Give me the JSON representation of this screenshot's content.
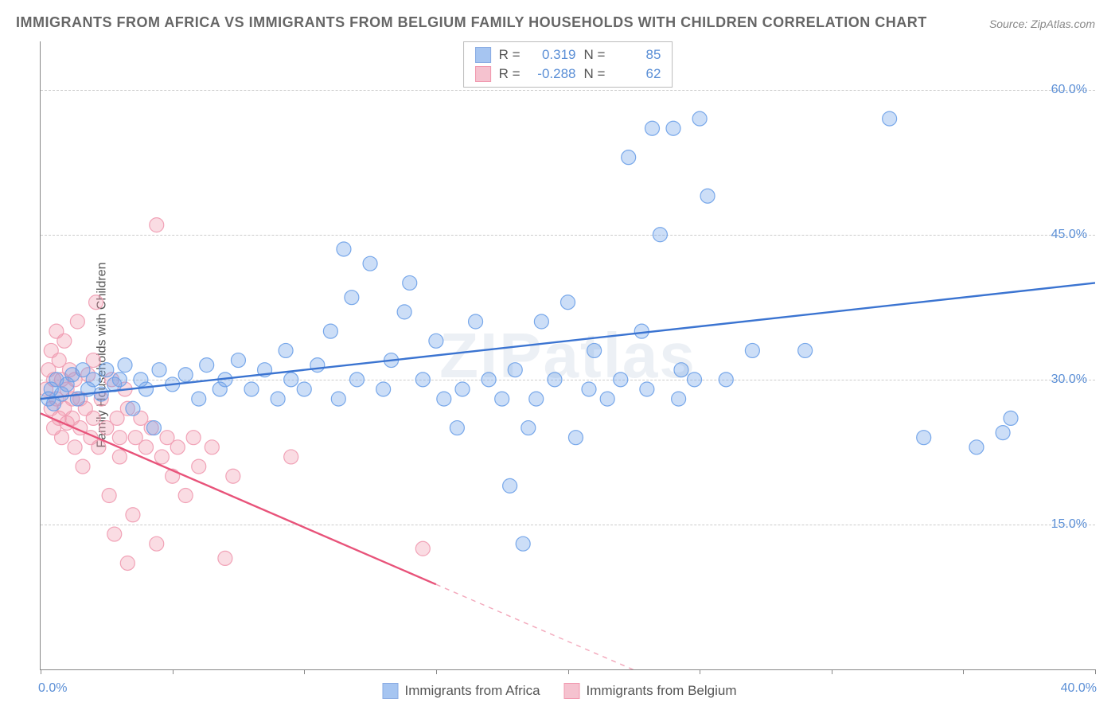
{
  "title": "IMMIGRANTS FROM AFRICA VS IMMIGRANTS FROM BELGIUM FAMILY HOUSEHOLDS WITH CHILDREN CORRELATION CHART",
  "source": "Source: ZipAtlas.com",
  "watermark": "ZIPatlas",
  "y_axis_label": "Family Households with Children",
  "chart": {
    "type": "scatter",
    "background_color": "#ffffff",
    "grid_color": "#cccccc",
    "axis_color": "#888888",
    "tick_label_color": "#5b8fd6",
    "xlim": [
      0,
      40
    ],
    "ylim": [
      0,
      65
    ],
    "x_ticks": [
      0,
      5,
      10,
      15,
      20,
      25,
      30,
      35,
      40
    ],
    "x_tick_labels": {
      "min": "0.0%",
      "max": "40.0%"
    },
    "y_grid": [
      15,
      30,
      45,
      60
    ],
    "y_tick_labels": [
      "15.0%",
      "30.0%",
      "45.0%",
      "60.0%"
    ],
    "marker_radius": 9,
    "marker_fill_opacity": 0.35,
    "marker_stroke_opacity": 0.9,
    "marker_stroke_width": 1.2,
    "line_width": 2.4,
    "series": [
      {
        "name": "Immigrants from Africa",
        "color": "#6ca0e8",
        "line_color": "#3b74d1",
        "r_value": "0.319",
        "n_value": "85",
        "trend": {
          "x1": 0,
          "y1": 28,
          "x2": 40,
          "y2": 40,
          "dash_from_x": null
        },
        "points": [
          [
            0.3,
            28
          ],
          [
            0.4,
            29
          ],
          [
            0.5,
            27.5
          ],
          [
            0.6,
            30
          ],
          [
            0.8,
            28.5
          ],
          [
            1.0,
            29.5
          ],
          [
            1.2,
            30.5
          ],
          [
            1.4,
            28
          ],
          [
            1.6,
            31
          ],
          [
            1.8,
            29
          ],
          [
            2.0,
            30
          ],
          [
            2.3,
            28.5
          ],
          [
            2.5,
            31
          ],
          [
            2.8,
            29.5
          ],
          [
            3.0,
            30
          ],
          [
            3.2,
            31.5
          ],
          [
            3.5,
            27
          ],
          [
            3.8,
            30
          ],
          [
            4.0,
            29
          ],
          [
            4.3,
            25
          ],
          [
            4.5,
            31
          ],
          [
            5.0,
            29.5
          ],
          [
            5.5,
            30.5
          ],
          [
            6.0,
            28
          ],
          [
            6.3,
            31.5
          ],
          [
            6.8,
            29
          ],
          [
            7.0,
            30
          ],
          [
            7.5,
            32
          ],
          [
            8.0,
            29
          ],
          [
            8.5,
            31
          ],
          [
            9.0,
            28
          ],
          [
            9.3,
            33
          ],
          [
            9.5,
            30
          ],
          [
            10.0,
            29
          ],
          [
            10.5,
            31.5
          ],
          [
            11.0,
            35
          ],
          [
            11.3,
            28
          ],
          [
            11.5,
            43.5
          ],
          [
            11.8,
            38.5
          ],
          [
            12.0,
            30
          ],
          [
            12.5,
            42
          ],
          [
            13.0,
            29
          ],
          [
            13.3,
            32
          ],
          [
            13.8,
            37
          ],
          [
            14.0,
            40
          ],
          [
            14.5,
            30
          ],
          [
            15.0,
            34
          ],
          [
            15.3,
            28
          ],
          [
            15.8,
            25
          ],
          [
            16.0,
            29
          ],
          [
            16.5,
            36
          ],
          [
            17.0,
            30
          ],
          [
            17.5,
            28
          ],
          [
            17.8,
            19
          ],
          [
            18.0,
            31
          ],
          [
            18.3,
            13
          ],
          [
            18.5,
            25
          ],
          [
            18.8,
            28
          ],
          [
            19.0,
            36
          ],
          [
            19.5,
            30
          ],
          [
            20.0,
            38
          ],
          [
            20.3,
            24
          ],
          [
            20.8,
            29
          ],
          [
            21.0,
            33
          ],
          [
            21.5,
            28
          ],
          [
            22.0,
            30
          ],
          [
            22.3,
            53
          ],
          [
            22.8,
            35
          ],
          [
            23.0,
            29
          ],
          [
            23.2,
            56
          ],
          [
            23.5,
            45
          ],
          [
            24.0,
            56
          ],
          [
            24.2,
            28
          ],
          [
            24.3,
            31
          ],
          [
            24.8,
            30
          ],
          [
            25.0,
            57
          ],
          [
            25.3,
            49
          ],
          [
            26.0,
            30
          ],
          [
            27.0,
            33
          ],
          [
            29.0,
            33
          ],
          [
            32.2,
            57
          ],
          [
            33.5,
            24
          ],
          [
            35.5,
            23
          ],
          [
            36.5,
            24.5
          ],
          [
            36.8,
            26
          ]
        ]
      },
      {
        "name": "Immigrants from Belgium",
        "color": "#f09ab0",
        "line_color": "#e8537a",
        "r_value": "-0.288",
        "n_value": "62",
        "trend": {
          "x1": 0,
          "y1": 26.5,
          "x2": 25,
          "y2": -3,
          "dash_from_x": 15
        },
        "points": [
          [
            0.2,
            29
          ],
          [
            0.3,
            31
          ],
          [
            0.4,
            27
          ],
          [
            0.4,
            33
          ],
          [
            0.5,
            25
          ],
          [
            0.5,
            30
          ],
          [
            0.6,
            28
          ],
          [
            0.6,
            35
          ],
          [
            0.7,
            26
          ],
          [
            0.7,
            32
          ],
          [
            0.8,
            24
          ],
          [
            0.8,
            30
          ],
          [
            0.9,
            27
          ],
          [
            0.9,
            34
          ],
          [
            1.0,
            25.5
          ],
          [
            1.0,
            29
          ],
          [
            1.1,
            31
          ],
          [
            1.2,
            26
          ],
          [
            1.2,
            28
          ],
          [
            1.3,
            23
          ],
          [
            1.3,
            30
          ],
          [
            1.4,
            36
          ],
          [
            1.5,
            25
          ],
          [
            1.5,
            28
          ],
          [
            1.6,
            21
          ],
          [
            1.7,
            27
          ],
          [
            1.8,
            30.5
          ],
          [
            1.9,
            24
          ],
          [
            2.0,
            26
          ],
          [
            2.0,
            32
          ],
          [
            2.1,
            38
          ],
          [
            2.2,
            23
          ],
          [
            2.3,
            28
          ],
          [
            2.5,
            25
          ],
          [
            2.6,
            18
          ],
          [
            2.7,
            30
          ],
          [
            2.8,
            14
          ],
          [
            2.9,
            26
          ],
          [
            3.0,
            22
          ],
          [
            3.0,
            24
          ],
          [
            3.2,
            29
          ],
          [
            3.3,
            11
          ],
          [
            3.3,
            27
          ],
          [
            3.5,
            16
          ],
          [
            3.6,
            24
          ],
          [
            3.8,
            26
          ],
          [
            4.0,
            23
          ],
          [
            4.2,
            25
          ],
          [
            4.4,
            13
          ],
          [
            4.4,
            46
          ],
          [
            4.6,
            22
          ],
          [
            4.8,
            24
          ],
          [
            5.0,
            20
          ],
          [
            5.2,
            23
          ],
          [
            5.5,
            18
          ],
          [
            5.8,
            24
          ],
          [
            6.0,
            21
          ],
          [
            6.5,
            23
          ],
          [
            7.0,
            11.5
          ],
          [
            7.3,
            20
          ],
          [
            9.5,
            22
          ],
          [
            14.5,
            12.5
          ]
        ]
      }
    ]
  },
  "legend": {
    "stats_labels": {
      "r": "R =",
      "n": "N ="
    }
  }
}
